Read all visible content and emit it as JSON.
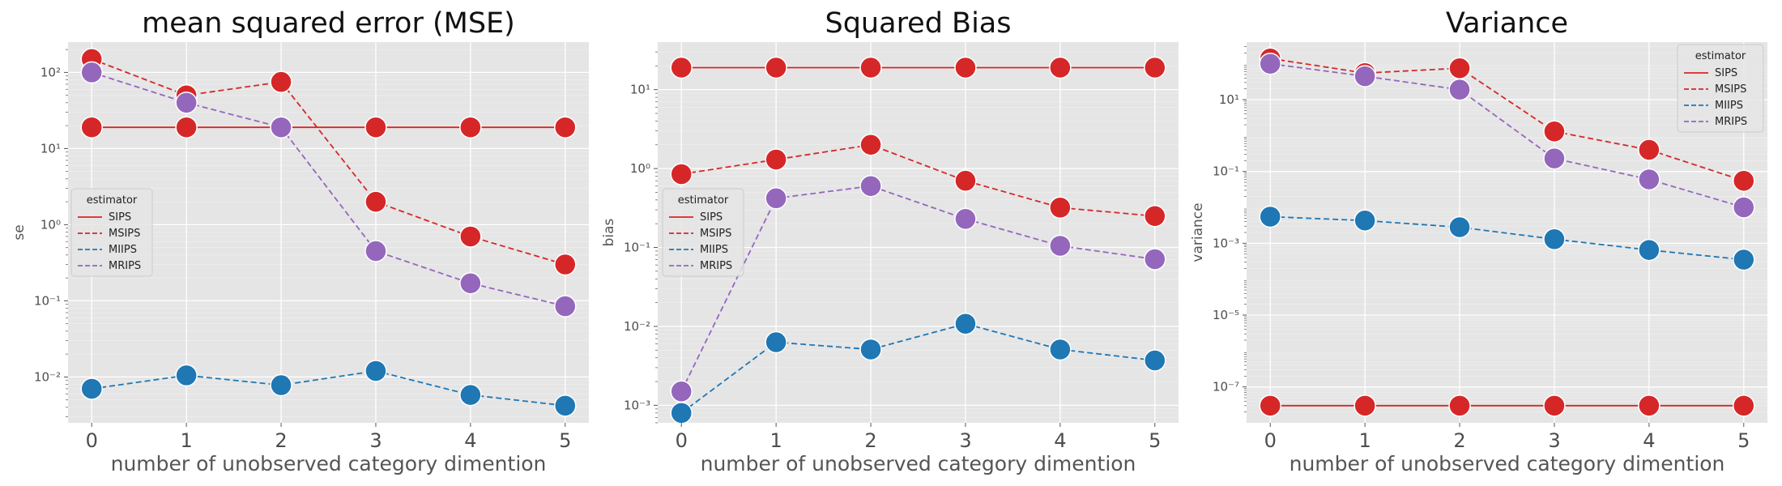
{
  "colors": {
    "SIPS": "#d62728",
    "MSIPS": "#d62728",
    "MIIPS": "#1f77b4",
    "MRIPS": "#9467bd",
    "panel_bg": "#e5e5e5",
    "grid": "#ffffff"
  },
  "legend_title": "estimator",
  "chart_data": [
    {
      "type": "line",
      "title": "mean squared error (MSE)",
      "xlabel": "number of unobserved category dimention",
      "ylabel": "se",
      "yscale": "log",
      "ylim": [
        0.0025,
        250
      ],
      "x": [
        0,
        1,
        2,
        3,
        4,
        5
      ],
      "x_tick_labels": [
        "0",
        "1",
        "2",
        "3",
        "4",
        "5"
      ],
      "y_ticks": [
        0.01,
        0.1,
        1,
        10,
        100
      ],
      "y_tick_labels": [
        "10⁻²",
        "10⁻¹",
        "10⁰",
        "10¹",
        "10²"
      ],
      "legend_position": "center-left",
      "grid": true,
      "series": [
        {
          "name": "SIPS",
          "style": "solid",
          "values": [
            19,
            19,
            19,
            19,
            19,
            19
          ]
        },
        {
          "name": "MSIPS",
          "style": "dashed",
          "values": [
            150,
            50,
            75,
            2,
            0.7,
            0.3
          ]
        },
        {
          "name": "MIIPS",
          "style": "dashed",
          "values": [
            0.007,
            0.0105,
            0.0078,
            0.012,
            0.0058,
            0.0042
          ]
        },
        {
          "name": "MRIPS",
          "style": "dashed",
          "values": [
            100,
            40,
            19,
            0.45,
            0.17,
            0.085
          ]
        }
      ]
    },
    {
      "type": "line",
      "title": "Squared Bias",
      "xlabel": "number of unobserved category dimention",
      "ylabel": "bias",
      "yscale": "log",
      "ylim": [
        0.0006,
        40
      ],
      "x": [
        0,
        1,
        2,
        3,
        4,
        5
      ],
      "x_tick_labels": [
        "0",
        "1",
        "2",
        "3",
        "4",
        "5"
      ],
      "y_ticks": [
        0.001,
        0.01,
        0.1,
        1,
        10
      ],
      "y_tick_labels": [
        "10⁻³",
        "10⁻²",
        "10⁻¹",
        "10⁰",
        "10¹"
      ],
      "legend_position": "center-left",
      "grid": true,
      "series": [
        {
          "name": "SIPS",
          "style": "solid",
          "values": [
            19,
            19,
            19,
            19,
            19,
            19
          ]
        },
        {
          "name": "MSIPS",
          "style": "dashed",
          "values": [
            0.85,
            1.3,
            2.0,
            0.7,
            0.32,
            0.25
          ]
        },
        {
          "name": "MIIPS",
          "style": "dashed",
          "values": [
            0.0008,
            0.0063,
            0.0051,
            0.0108,
            0.0051,
            0.0037
          ]
        },
        {
          "name": "MRIPS",
          "style": "dashed",
          "values": [
            0.0015,
            0.42,
            0.6,
            0.23,
            0.105,
            0.071
          ]
        }
      ]
    },
    {
      "type": "line",
      "title": "Variance",
      "xlabel": "number of unobserved category dimention",
      "ylabel": "variance",
      "yscale": "log",
      "ylim": [
        1e-08,
        400
      ],
      "x": [
        0,
        1,
        2,
        3,
        4,
        5
      ],
      "x_tick_labels": [
        "0",
        "1",
        "2",
        "3",
        "4",
        "5"
      ],
      "y_ticks": [
        1e-07,
        1e-05,
        0.001,
        0.1,
        10
      ],
      "y_tick_labels": [
        "10⁻⁷",
        "10⁻⁵",
        "10⁻³",
        "10⁻¹",
        "10¹"
      ],
      "legend_position": "top-right",
      "grid": true,
      "series": [
        {
          "name": "SIPS",
          "style": "solid",
          "values": [
            3e-08,
            3e-08,
            3e-08,
            3e-08,
            3e-08,
            3e-08
          ]
        },
        {
          "name": "MSIPS",
          "style": "dashed",
          "values": [
            140,
            55,
            75,
            1.3,
            0.4,
            0.055
          ]
        },
        {
          "name": "MIIPS",
          "style": "dashed",
          "values": [
            0.0055,
            0.0043,
            0.0028,
            0.0013,
            0.00065,
            0.00035
          ]
        },
        {
          "name": "MRIPS",
          "style": "dashed",
          "values": [
            100,
            45,
            19,
            0.23,
            0.06,
            0.01
          ]
        }
      ]
    }
  ]
}
